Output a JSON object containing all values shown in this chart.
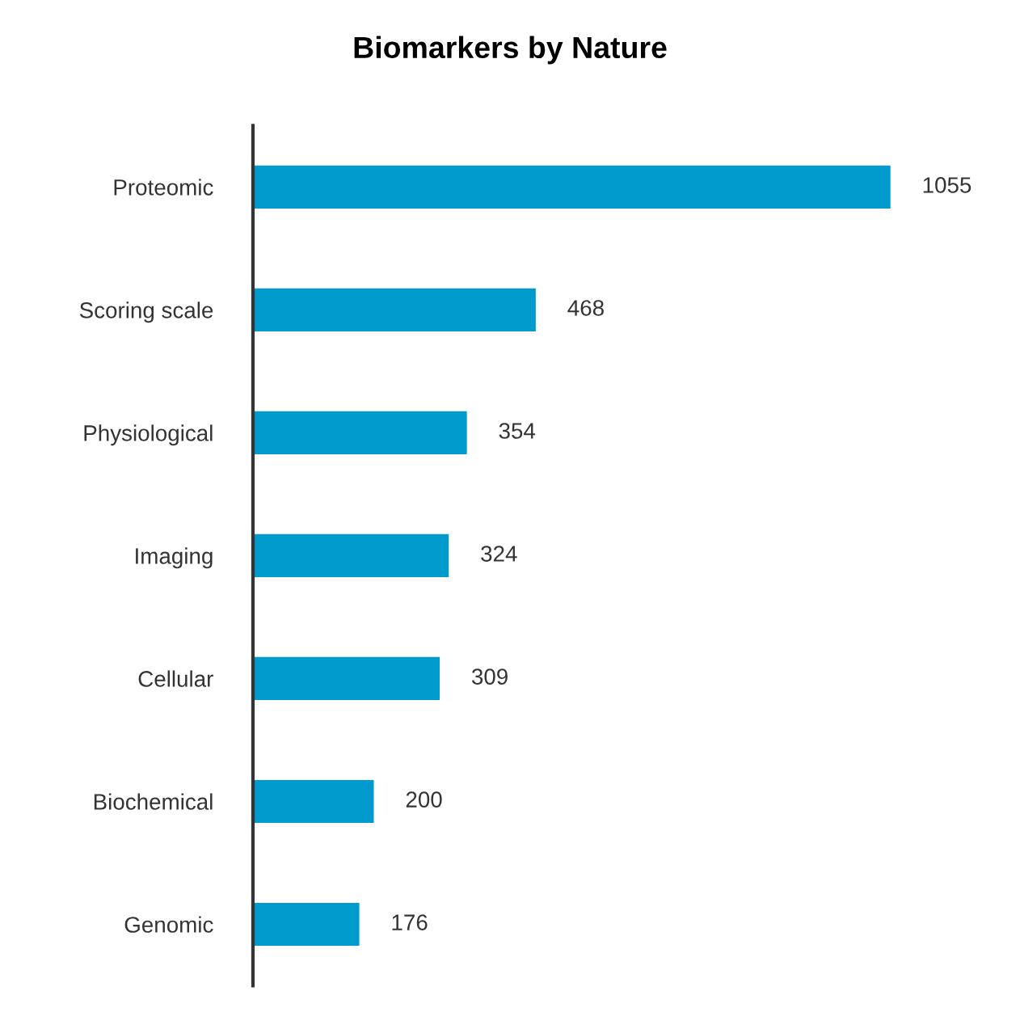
{
  "chart_data": {
    "type": "bar",
    "orientation": "horizontal",
    "title": "Biomarkers by Nature",
    "categories": [
      "Proteomic",
      "Scoring scale",
      "Physiological",
      "Imaging",
      "Cellular",
      "Biochemical",
      "Genomic"
    ],
    "values": [
      1055,
      468,
      354,
      324,
      309,
      200,
      176
    ],
    "color": "#009acd",
    "data_labels": true,
    "grid": false,
    "legend": false,
    "tick_labels": "y"
  }
}
